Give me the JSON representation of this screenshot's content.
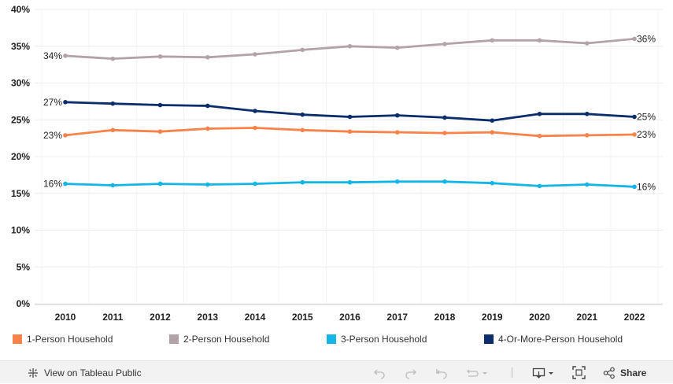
{
  "chart_data": {
    "type": "line",
    "categories": [
      "2010",
      "2011",
      "2012",
      "2013",
      "2014",
      "2015",
      "2016",
      "2017",
      "2018",
      "2019",
      "2020",
      "2021",
      "2022"
    ],
    "ylim": [
      0,
      40
    ],
    "yticks": [
      0,
      5,
      10,
      15,
      20,
      25,
      30,
      35,
      40
    ],
    "ytick_labels": [
      "0%",
      "5%",
      "10%",
      "15%",
      "20%",
      "25%",
      "30%",
      "35%",
      "40%"
    ],
    "grid": true,
    "series": [
      {
        "name": "2-Person Household",
        "color": "#b3a2a9",
        "values": [
          33.7,
          33.3,
          33.6,
          33.5,
          33.9,
          34.5,
          35.0,
          34.8,
          35.3,
          35.8,
          35.8,
          35.4,
          36.0
        ],
        "start_label": "34%",
        "end_label": "36%"
      },
      {
        "name": "4-Or-More-Person Household",
        "color": "#0b2d6b",
        "values": [
          27.4,
          27.2,
          27.0,
          26.9,
          26.2,
          25.7,
          25.4,
          25.6,
          25.3,
          24.9,
          25.8,
          25.8,
          25.4
        ],
        "start_label": "27%",
        "end_label": "25%"
      },
      {
        "name": "1-Person Household",
        "color": "#f7834a",
        "values": [
          22.9,
          23.6,
          23.4,
          23.8,
          23.9,
          23.6,
          23.4,
          23.3,
          23.2,
          23.3,
          22.8,
          22.9,
          23.0
        ],
        "start_label": "23%",
        "end_label": "23%"
      },
      {
        "name": "3-Person Household",
        "color": "#13b5e6",
        "values": [
          16.3,
          16.1,
          16.3,
          16.2,
          16.3,
          16.5,
          16.5,
          16.6,
          16.6,
          16.4,
          16.0,
          16.2,
          15.9
        ],
        "start_label": "16%",
        "end_label": "16%"
      }
    ]
  },
  "legend": [
    {
      "label": "1-Person Household",
      "color": "#f7834a"
    },
    {
      "label": "2-Person Household",
      "color": "#b3a2a9"
    },
    {
      "label": "3-Person Household",
      "color": "#13b5e6"
    },
    {
      "label": "4-Or-More-Person Household",
      "color": "#0b2d6b"
    }
  ],
  "toolbar": {
    "view_label": "View on Tableau Public",
    "share_label": "Share"
  }
}
